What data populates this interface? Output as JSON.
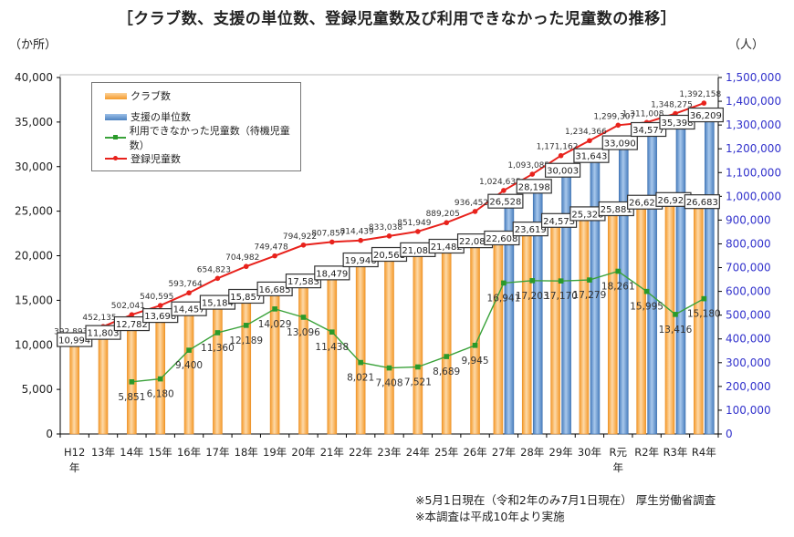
{
  "title": "［クラブ数、支援の単位数、登録児童数及び利用できなかった児童数の推移］",
  "chart_data": {
    "type": "bar+line",
    "title": "［クラブ数、支援の単位数、登録児童数及び利用できなかった児童数の推移］",
    "left_axis": {
      "unit": "（か所）",
      "range": [
        0,
        40000
      ],
      "ticks": [
        "0",
        "5,000",
        "10,000",
        "15,000",
        "20,000",
        "25,000",
        "30,000",
        "35,000",
        "40,000"
      ]
    },
    "right_axis": {
      "unit": "（人）",
      "range": [
        0,
        1500000
      ],
      "ticks": [
        "0",
        "100,000",
        "200,000",
        "300,000",
        "400,000",
        "500,000",
        "600,000",
        "700,000",
        "800,000",
        "900,000",
        "1,000,000",
        "1,100,000",
        "1,200,000",
        "1,300,000",
        "1,400,000",
        "1,500,000"
      ],
      "color": "#3333cc"
    },
    "categories": [
      "H12年",
      "13年",
      "14年",
      "15年",
      "16年",
      "17年",
      "18年",
      "19年",
      "20年",
      "21年",
      "22年",
      "23年",
      "24年",
      "25年",
      "26年",
      "27年",
      "28年",
      "29年",
      "30年",
      "R元年",
      "R2年",
      "R3年",
      "R4年"
    ],
    "series": [
      {
        "name": "クラブ数",
        "kind": "bar",
        "axis": "left",
        "color": "#f7a23a",
        "values": [
          10994,
          11803,
          12782,
          13698,
          14457,
          15184,
          15857,
          16685,
          17583,
          18479,
          19946,
          20561,
          21085,
          21482,
          22084,
          22608,
          23619,
          24573,
          25328,
          25881,
          26625,
          26925,
          26683
        ]
      },
      {
        "name": "支援の単位数",
        "kind": "bar",
        "axis": "left",
        "color": "#5b8fc9",
        "values": [
          null,
          null,
          null,
          null,
          null,
          null,
          null,
          null,
          null,
          null,
          null,
          null,
          null,
          null,
          null,
          26528,
          28198,
          30003,
          31643,
          33090,
          34577,
          35398,
          36209
        ]
      },
      {
        "name": "利用できなかった児童数（待機児童数）",
        "kind": "line",
        "axis": "left",
        "color": "#3aa23a",
        "values": [
          null,
          null,
          5851,
          6180,
          9400,
          11360,
          12189,
          14029,
          13096,
          11438,
          8021,
          7408,
          7521,
          8689,
          9945,
          16941,
          17203,
          17170,
          17279,
          18261,
          15995,
          13416,
          15180
        ]
      },
      {
        "name": "登録児童数",
        "kind": "line",
        "axis": "right",
        "color": "#e8221c",
        "values": [
          392893,
          452135,
          502041,
          540595,
          593764,
          654823,
          704982,
          749478,
          794922,
          807857,
          814439,
          833038,
          851949,
          889205,
          936452,
          1024635,
          1093085,
          1171162,
          1234366,
          1299307,
          1311008,
          1348275,
          1392158
        ]
      }
    ],
    "legend": "top-left",
    "grid": false
  },
  "notes": [
    "※5月1日現在（令和2年のみ7月1日現在） 厚生労働省調査",
    "※本調査は平成10年より実施"
  ]
}
